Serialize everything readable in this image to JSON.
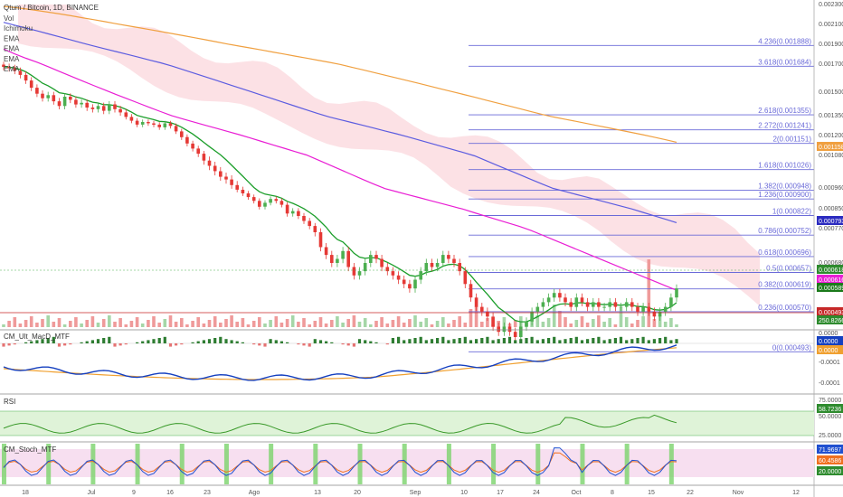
{
  "header": {
    "symbol": "Qtum / Bitcoin, 1D, BINANCE",
    "indicators": [
      "Vol",
      "Ichimoku",
      "EMA",
      "EMA",
      "EMA",
      "EMA"
    ]
  },
  "colors": {
    "up": "#4caf50",
    "down": "#e53935",
    "ema_short": "#1b9e2a",
    "ema_mid": "#e91ed4",
    "ema_long": "#5c5ce0",
    "ema_200": "#f0a040",
    "cloud": "#f9c9cf",
    "fib": "#6a6ad8",
    "rsi": "#3a9a2a",
    "macd_main": "#1540c0",
    "macd_signal": "#f0a030",
    "stoch_k": "#2050d0",
    "stoch_d": "#f07020"
  },
  "price_axis": {
    "ticks": [
      "0.002300",
      "0.002100",
      "0.001900",
      "0.001700",
      "0.001500",
      "0.001350",
      "0.001200",
      "0.001080",
      "0.000960",
      "0.000850",
      "0.000770",
      "0.000680"
    ],
    "badges": [
      {
        "text": "0.001158",
        "color": "#f0a040"
      },
      {
        "text": "0.000793",
        "color": "#2c2cc0"
      },
      {
        "text": "0.000618",
        "color": "#2e8b2e"
      },
      {
        "text": "0.000616",
        "color": "#e91ed4"
      },
      {
        "text": "0.000589",
        "color": "#1b7a1b"
      },
      {
        "text": "0.000493",
        "color": "#c62828"
      },
      {
        "text": "250.8266",
        "color": "#2e8b2e"
      }
    ]
  },
  "fib_levels": [
    {
      "label": "4.236(0.001888)",
      "value": 0.001888
    },
    {
      "label": "3.618(0.001684)",
      "value": 0.001684
    },
    {
      "label": "2.618(0.001355)",
      "value": 0.001355
    },
    {
      "label": "2.272(0.001241)",
      "value": 0.001241
    },
    {
      "label": "2(0.001151)",
      "value": 0.001151
    },
    {
      "label": "1.618(0.001026)",
      "value": 0.001026
    },
    {
      "label": "1.382(0.000948)",
      "value": 0.000948
    },
    {
      "label": "1.236(0.000900)",
      "value": 0.0009
    },
    {
      "label": "1(0.000822)",
      "value": 0.000822
    },
    {
      "label": "0.786(0.000752)",
      "value": 0.000752
    },
    {
      "label": "0.618(0.000696)",
      "value": 0.000696
    },
    {
      "label": "0.5(0.000657)",
      "value": 0.000657
    },
    {
      "label": "0.382(0.000619)",
      "value": 0.000619
    },
    {
      "label": "0.236(0.000570)",
      "value": 0.00057
    },
    {
      "label": "0(0.000493)",
      "value": 0.000493
    }
  ],
  "x_axis": {
    "labels": [
      "18",
      "Jul",
      "9",
      "16",
      "23",
      "Ago",
      "13",
      "20",
      "Sep",
      "10",
      "17",
      "24",
      "Oct",
      "8",
      "15",
      "22",
      "Nov",
      "12"
    ]
  },
  "panes": {
    "macd": {
      "title": "CM_Ult_MacD_MTF",
      "ticks": [
        "0.0000",
        "-0.0001",
        "-0.0001"
      ],
      "badges": [
        {
          "text": "0.0000",
          "color": "#1540c0"
        },
        {
          "text": "0.0000",
          "color": "#f0a030"
        }
      ]
    },
    "rsi": {
      "title": "RSI",
      "ticks": [
        "75.0000",
        "50.0000",
        "25.0000"
      ],
      "badge": "58.7236"
    },
    "stoch": {
      "title": "CM_Stoch_MTF",
      "ticks": [
        "20.0000"
      ],
      "badges": [
        {
          "text": "71.9697",
          "color": "#2050d0"
        },
        {
          "text": "60.4586",
          "color": "#f07020"
        },
        {
          "text": "20.0000",
          "color": "#2e8b2e"
        }
      ]
    }
  },
  "chart_data": {
    "type": "candlestick",
    "title": "Qtum / Bitcoin, 1D, BINANCE",
    "ylim": [
      0.00045,
      0.0023
    ],
    "ylabel": "",
    "xlabel": "",
    "x_start": "Jun 16",
    "x_end": "Oct 20",
    "close": [
      0.00168,
      0.00167,
      0.00165,
      0.00162,
      0.00158,
      0.00153,
      0.00149,
      0.00146,
      0.00148,
      0.00144,
      0.00141,
      0.00147,
      0.00145,
      0.00142,
      0.00143,
      0.0014,
      0.00139,
      0.00141,
      0.00138,
      0.00142,
      0.00139,
      0.00137,
      0.00134,
      0.00131,
      0.00128,
      0.0013,
      0.00129,
      0.00128,
      0.00126,
      0.00129,
      0.00127,
      0.00123,
      0.00119,
      0.00115,
      0.00112,
      0.00109,
      0.00106,
      0.00104,
      0.00102,
      0.001,
      0.00099,
      0.00097,
      0.00095,
      0.00093,
      0.00091,
      0.00089,
      0.00086,
      0.00088,
      0.0009,
      0.00089,
      0.00087,
      0.00083,
      0.00084,
      0.00082,
      0.0008,
      0.00078,
      0.00076,
      0.00072,
      0.0007,
      0.00068,
      0.00069,
      0.00071,
      0.00067,
      0.00065,
      0.00066,
      0.00068,
      0.0007,
      0.00069,
      0.00067,
      0.00066,
      0.00065,
      0.00064,
      0.00063,
      0.00062,
      0.00064,
      0.00066,
      0.00068,
      0.00067,
      0.00068,
      0.0007,
      0.00069,
      0.00068,
      0.00066,
      0.00063,
      0.0006,
      0.00058,
      0.00057,
      0.00056,
      0.00054,
      0.00053,
      0.00054,
      0.00053,
      0.00052,
      0.00054,
      0.00055,
      0.00057,
      0.00058,
      0.00059,
      0.0006,
      0.00061,
      0.0006,
      0.00059,
      0.00058,
      0.0006,
      0.00059,
      0.00058,
      0.00059,
      0.00058,
      0.00058,
      0.00059,
      0.00058,
      0.00058,
      0.00059,
      0.00058,
      0.00057,
      0.00058,
      0.00057,
      0.00056,
      0.00057,
      0.00058,
      0.0006,
      0.00062
    ],
    "ema_short_end": 0.000589,
    "ema_mid_end": 0.000616,
    "ema_long_end": 0.000793,
    "ema_200_end": 0.001158,
    "rsi_last": 58.7236,
    "stoch_k_last": 71.9697,
    "stoch_d_last": 60.4586,
    "volume_last": 250.8266
  }
}
